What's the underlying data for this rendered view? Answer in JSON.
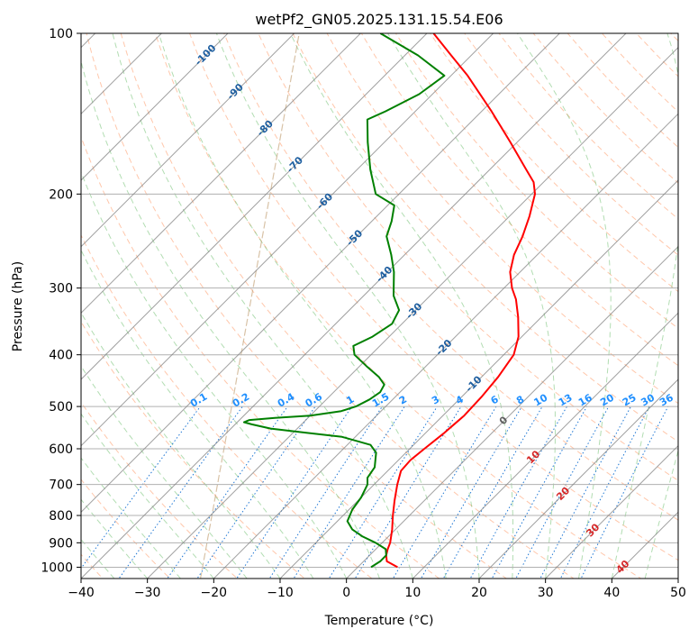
{
  "chart_data": {
    "type": "line",
    "title": "wetPf2_GN05.2025.131.15.54.E06",
    "xlabel": "Temperature (°C)",
    "ylabel": "Pressure (hPa)",
    "xlim": [
      -40,
      50
    ],
    "ylim_pressure": [
      1050,
      100
    ],
    "y_scale": "log",
    "grid": true,
    "x_ticks": [
      -40,
      -30,
      -20,
      -10,
      0,
      10,
      20,
      30,
      40,
      50
    ],
    "x_tick_labels": [
      "−40",
      "−30",
      "−20",
      "−10",
      "0",
      "10",
      "20",
      "30",
      "40",
      "50"
    ],
    "y_ticks": [
      1000,
      900,
      800,
      700,
      600,
      500,
      400,
      300,
      200,
      100
    ],
    "y_tick_labels": [
      "1000",
      "900",
      "800",
      "700",
      "600",
      "500",
      "400",
      "300",
      "200",
      "100"
    ],
    "skew": 1,
    "series": [
      {
        "role": "temperature",
        "color": "#ff0000",
        "points": [
          {
            "p": 1000,
            "t": 6.0
          },
          {
            "p": 975,
            "t": 3.5
          },
          {
            "p": 950,
            "t": 2.5
          },
          {
            "p": 925,
            "t": 1.8
          },
          {
            "p": 900,
            "t": 1.2
          },
          {
            "p": 850,
            "t": -0.5
          },
          {
            "p": 800,
            "t": -2.5
          },
          {
            "p": 750,
            "t": -4.5
          },
          {
            "p": 700,
            "t": -6.5
          },
          {
            "p": 660,
            "t": -8.0
          },
          {
            "p": 630,
            "t": -8.2
          },
          {
            "p": 600,
            "t": -7.8
          },
          {
            "p": 560,
            "t": -7.2
          },
          {
            "p": 520,
            "t": -6.8
          },
          {
            "p": 480,
            "t": -7.0
          },
          {
            "p": 440,
            "t": -7.5
          },
          {
            "p": 400,
            "t": -8.5
          },
          {
            "p": 370,
            "t": -10.5
          },
          {
            "p": 340,
            "t": -13.5
          },
          {
            "p": 315,
            "t": -16.5
          },
          {
            "p": 300,
            "t": -18.8
          },
          {
            "p": 280,
            "t": -21.5
          },
          {
            "p": 260,
            "t": -23.5
          },
          {
            "p": 240,
            "t": -25.0
          },
          {
            "p": 220,
            "t": -27.0
          },
          {
            "p": 200,
            "t": -29.5
          },
          {
            "p": 190,
            "t": -31.5
          },
          {
            "p": 180,
            "t": -34.5
          },
          {
            "p": 160,
            "t": -41.0
          },
          {
            "p": 140,
            "t": -48.5
          },
          {
            "p": 120,
            "t": -57.5
          },
          {
            "p": 110,
            "t": -63.0
          },
          {
            "p": 100,
            "t": -69.0
          }
        ]
      },
      {
        "role": "dewpoint",
        "color": "#008000",
        "points": [
          {
            "p": 1000,
            "t": 2.0
          },
          {
            "p": 975,
            "t": 2.5
          },
          {
            "p": 950,
            "t": 2.5
          },
          {
            "p": 925,
            "t": 1.5
          },
          {
            "p": 900,
            "t": -1.0
          },
          {
            "p": 875,
            "t": -4.0
          },
          {
            "p": 850,
            "t": -6.5
          },
          {
            "p": 820,
            "t": -8.5
          },
          {
            "p": 780,
            "t": -9.5
          },
          {
            "p": 740,
            "t": -10.0
          },
          {
            "p": 700,
            "t": -11.0
          },
          {
            "p": 680,
            "t": -12.0
          },
          {
            "p": 650,
            "t": -12.5
          },
          {
            "p": 610,
            "t": -14.5
          },
          {
            "p": 590,
            "t": -16.5
          },
          {
            "p": 570,
            "t": -22.0
          },
          {
            "p": 560,
            "t": -28.0
          },
          {
            "p": 550,
            "t": -34.0
          },
          {
            "p": 540,
            "t": -37.5
          },
          {
            "p": 535,
            "t": -39.0
          },
          {
            "p": 530,
            "t": -38.5
          },
          {
            "p": 525,
            "t": -35.0
          },
          {
            "p": 520,
            "t": -30.0
          },
          {
            "p": 510,
            "t": -26.0
          },
          {
            "p": 500,
            "t": -24.5
          },
          {
            "p": 485,
            "t": -23.5
          },
          {
            "p": 470,
            "t": -23.0
          },
          {
            "p": 455,
            "t": -23.5
          },
          {
            "p": 440,
            "t": -25.5
          },
          {
            "p": 420,
            "t": -29.0
          },
          {
            "p": 400,
            "t": -32.5
          },
          {
            "p": 385,
            "t": -34.0
          },
          {
            "p": 370,
            "t": -32.5
          },
          {
            "p": 350,
            "t": -31.5
          },
          {
            "p": 330,
            "t": -32.5
          },
          {
            "p": 310,
            "t": -35.5
          },
          {
            "p": 280,
            "t": -39.0
          },
          {
            "p": 260,
            "t": -42.0
          },
          {
            "p": 240,
            "t": -45.5
          },
          {
            "p": 225,
            "t": -47.0
          },
          {
            "p": 210,
            "t": -49.0
          },
          {
            "p": 200,
            "t": -53.5
          },
          {
            "p": 180,
            "t": -58.0
          },
          {
            "p": 160,
            "t": -62.5
          },
          {
            "p": 145,
            "t": -66.0
          },
          {
            "p": 140,
            "t": -64.5
          },
          {
            "p": 130,
            "t": -62.0
          },
          {
            "p": 120,
            "t": -61.0
          },
          {
            "p": 110,
            "t": -68.0
          },
          {
            "p": 100,
            "t": -77.0
          }
        ]
      }
    ],
    "reference_lines": {
      "isobars": [
        1000,
        900,
        800,
        700,
        600,
        500,
        400,
        300,
        200,
        100
      ],
      "isotherms_step": 10,
      "dry_adiabats_color": "#ff9966",
      "moist_adiabats_color": "#66bb66",
      "mixing_ratio_color": "#1f77d4",
      "isotherm_color": "#808080",
      "lcl_curve_color": "#c8a880",
      "isotherm_labels": [
        "-100",
        "-90",
        "-80",
        "-70",
        "-60",
        "-50",
        "-40",
        "-30",
        "-20",
        "-10",
        "0",
        "10",
        "20",
        "30",
        "40"
      ],
      "isotherm_label_colors": {
        "negative": "#1f5fa0",
        "zero": "#606060",
        "positive": "#d62728"
      },
      "mixing_ratio_labels": [
        "0.1",
        "0.2",
        "0.4",
        "0.6",
        "1",
        "1.5",
        "2",
        "3",
        "4",
        "6",
        "8",
        "10",
        "13",
        "16",
        "20",
        "25",
        "30",
        "36"
      ],
      "mixing_ratio_label_color": "#1f8fff"
    }
  }
}
